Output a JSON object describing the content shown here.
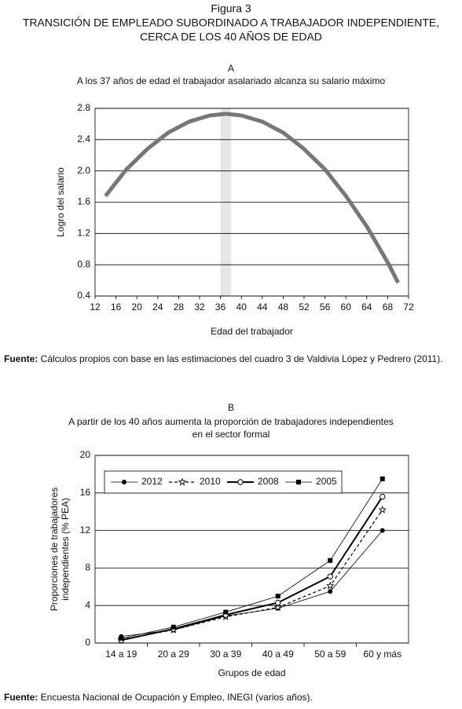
{
  "figure": {
    "label": "Figura 3",
    "title_lines": [
      "TRANSICIÓN DE EMPLEADO SUBORDINADO A TRABAJADOR INDEPENDIENTE,",
      "CERCA DE LOS 40 AÑOS DE EDAD"
    ]
  },
  "chart_data": [
    {
      "type": "line",
      "panel": "A",
      "subtitle_lines": [
        "A los 37 años de edad el trabajador asalariado alcanza su salario máximo"
      ],
      "x_label": "Edad del trabajador",
      "y_label_lines": [
        "Logro del salario"
      ],
      "x": [
        14,
        18,
        22,
        26,
        30,
        34,
        37,
        40,
        44,
        48,
        52,
        56,
        60,
        64,
        68,
        70
      ],
      "values": [
        1.68,
        2.02,
        2.28,
        2.49,
        2.63,
        2.71,
        2.73,
        2.71,
        2.63,
        2.49,
        2.28,
        2.02,
        1.68,
        1.29,
        0.83,
        0.57
      ],
      "color": "#777777",
      "highlight_x": [
        36,
        38
      ],
      "xlim": [
        12,
        72
      ],
      "xticks": [
        12,
        16,
        20,
        24,
        28,
        32,
        36,
        40,
        44,
        48,
        52,
        56,
        60,
        64,
        68,
        72
      ],
      "ylim": [
        0.4,
        2.8
      ],
      "yticks": [
        0.4,
        0.8,
        1.2,
        1.6,
        {
          "value": 2,
          "label": "2.0"
        },
        2.4,
        2.8
      ],
      "grid": true,
      "source": {
        "label": "Fuente:",
        "text": " Cálculos propios con base en las estimaciones del cuadro 3 de Valdivia López y Pedrero (2011)."
      }
    },
    {
      "type": "line",
      "panel": "B",
      "subtitle_lines": [
        "A partir de los 40 años aumenta la proporción de trabajadores independientes",
        "en el sector formal"
      ],
      "x_label": "Grupos de edad",
      "y_label_lines": [
        "Proporciones de trabajadores",
        "independientes (% PEA)"
      ],
      "categories": [
        "14  a 19",
        "20  a  29",
        "30  a 39",
        "40  a  49",
        "50  a 59",
        "60  y más"
      ],
      "series": [
        {
          "name": "2012",
          "color": "#000000",
          "marker": "filled-circle",
          "dashed": false,
          "width": 0.8,
          "values": [
            0.7,
            1.4,
            2.9,
            3.7,
            5.5,
            12.0
          ]
        },
        {
          "name": "2010",
          "color": "#000000",
          "marker": "star",
          "dashed": true,
          "width": 1.2,
          "values": [
            0.4,
            1.4,
            2.8,
            3.8,
            6.1,
            14.2
          ]
        },
        {
          "name": "2008",
          "color": "#000000",
          "marker": "open-circle",
          "dashed": false,
          "width": 2,
          "values": [
            0.3,
            1.5,
            3.0,
            4.3,
            7.1,
            15.6
          ]
        },
        {
          "name": "2005",
          "color": "#000000",
          "marker": "square",
          "dashed": false,
          "width": 0.8,
          "values": [
            0.5,
            1.7,
            3.3,
            5.0,
            8.8,
            17.5
          ]
        }
      ],
      "ylim": [
        0,
        20
      ],
      "yticks": [
        0,
        4,
        8,
        12,
        16,
        20
      ],
      "grid": true,
      "legend": "upper left",
      "source": {
        "label": "Fuente:",
        "text": " Encuesta Nacional de Ocupación y Empleo, INEGI (varios años)."
      }
    }
  ]
}
